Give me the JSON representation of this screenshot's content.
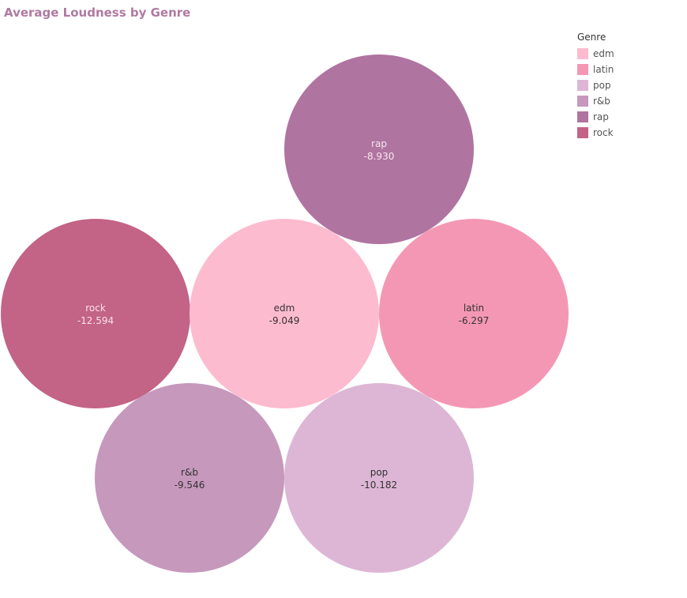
{
  "chart_data": {
    "type": "bubble",
    "title": "Average Loudness by Genre",
    "legend_title": "Genre",
    "legend_position": "top-right",
    "series": [
      {
        "name": "rap",
        "value": -8.93,
        "color": "#b074a0",
        "label_color": "#f4e6ef"
      },
      {
        "name": "rock",
        "value": -12.594,
        "color": "#c36385",
        "label_color": "#f8e3ea"
      },
      {
        "name": "edm",
        "value": -9.049,
        "color": "#fdbbd0",
        "label_color": "#333333"
      },
      {
        "name": "latin",
        "value": -6.297,
        "color": "#f497b5",
        "label_color": "#333333"
      },
      {
        "name": "r&b",
        "value": -9.546,
        "color": "#c698bc",
        "label_color": "#333333"
      },
      {
        "name": "pop",
        "value": -10.182,
        "color": "#ddb6d5",
        "label_color": "#333333"
      }
    ],
    "value_labels": [
      "-8.930",
      "-12.594",
      "-9.049",
      "-6.297",
      "-9.546",
      "-10.182"
    ]
  },
  "legend": {
    "items": [
      {
        "label": "edm",
        "color": "#fdbbd0"
      },
      {
        "label": "latin",
        "color": "#f497b5"
      },
      {
        "label": "pop",
        "color": "#ddb6d5"
      },
      {
        "label": "r&b",
        "color": "#c698bc"
      },
      {
        "label": "rap",
        "color": "#b074a0"
      },
      {
        "label": "rock",
        "color": "#c36385"
      }
    ]
  }
}
